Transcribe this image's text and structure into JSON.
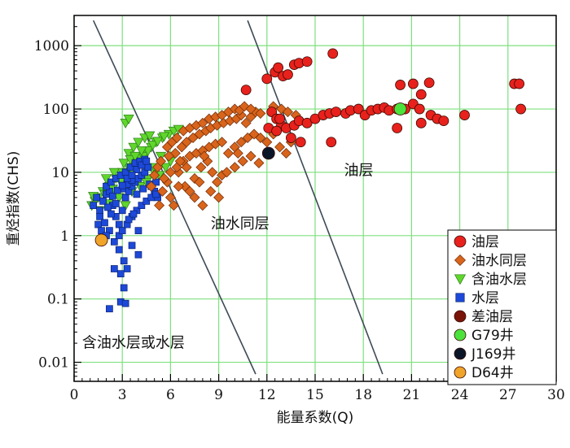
{
  "chart_data": {
    "type": "scatter",
    "xlabel": "能量系数(Q)",
    "ylabel": "重烃指数(CHS)",
    "xlim": [
      0,
      30
    ],
    "ylim": [
      0.005,
      3000
    ],
    "yscale": "log",
    "x_ticks": [
      "0",
      "3",
      "6",
      "9",
      "12",
      "15",
      "18",
      "21",
      "24",
      "27",
      "30"
    ],
    "x_tick_values": [
      0,
      3,
      6,
      9,
      12,
      15,
      18,
      21,
      24,
      27,
      30
    ],
    "y_ticks": [
      "0.01",
      "0.1",
      "1",
      "10",
      "100",
      "1000"
    ],
    "y_tick_values": [
      0.01,
      0.1,
      1,
      10,
      100,
      1000
    ],
    "grid": true,
    "grid_color": "#7ee07e",
    "legend_position": "bottom-right",
    "region_labels": [
      {
        "text": "油层",
        "x": 16.8,
        "y": 9
      },
      {
        "text": "油水同层",
        "x": 8.5,
        "y": 1.3
      },
      {
        "text": "含油水层或水层",
        "x": 0.5,
        "y": 0.017
      }
    ],
    "boundary_lines": [
      {
        "name": "left",
        "points": [
          [
            1.2,
            2500
          ],
          [
            11.3,
            0.0065
          ]
        ]
      },
      {
        "name": "right",
        "points": [
          [
            10.8,
            2500
          ],
          [
            19.2,
            0.0065
          ]
        ]
      }
    ],
    "series": [
      {
        "name": "油层",
        "marker": "circle",
        "color": "#e8211c",
        "points": [
          [
            10.7,
            200
          ],
          [
            12,
            300
          ],
          [
            12.5,
            380
          ],
          [
            12.7,
            450
          ],
          [
            13,
            330
          ],
          [
            13.3,
            350
          ],
          [
            13.7,
            500
          ],
          [
            14,
            530
          ],
          [
            14.5,
            560
          ],
          [
            16.1,
            750
          ],
          [
            12.3,
            90
          ],
          [
            12.6,
            70
          ],
          [
            12.9,
            55
          ],
          [
            13.2,
            50
          ],
          [
            13.7,
            55
          ],
          [
            14,
            65
          ],
          [
            14.5,
            60
          ],
          [
            15,
            70
          ],
          [
            15.5,
            80
          ],
          [
            15.9,
            85
          ],
          [
            16.3,
            90
          ],
          [
            16.9,
            85
          ],
          [
            17.2,
            95
          ],
          [
            17.7,
            100
          ],
          [
            18.1,
            80
          ],
          [
            18.5,
            95
          ],
          [
            18.9,
            100
          ],
          [
            19.3,
            105
          ],
          [
            19.6,
            95
          ],
          [
            20.1,
            100
          ],
          [
            20.6,
            100
          ],
          [
            21.1,
            120
          ],
          [
            21.5,
            100
          ],
          [
            22.2,
            80
          ],
          [
            22.6,
            70
          ],
          [
            23,
            65
          ],
          [
            20.3,
            240
          ],
          [
            21.1,
            250
          ],
          [
            21.6,
            170
          ],
          [
            22.1,
            260
          ],
          [
            24.3,
            80
          ],
          [
            27.4,
            250
          ],
          [
            27.7,
            250
          ],
          [
            27.8,
            100
          ],
          [
            12.1,
            50
          ],
          [
            12.6,
            45
          ],
          [
            13.5,
            35
          ],
          [
            14.1,
            30
          ],
          [
            16,
            30
          ],
          [
            20.1,
            50
          ],
          [
            21.6,
            60
          ],
          [
            12.8,
            70
          ]
        ]
      },
      {
        "name": "油水同层",
        "marker": "diamond",
        "color": "#d9641c",
        "points": [
          [
            5.3,
            3
          ],
          [
            5.5,
            5
          ],
          [
            5.8,
            7
          ],
          [
            6,
            4
          ],
          [
            6.2,
            3
          ],
          [
            6.5,
            10
          ],
          [
            6.9,
            6
          ],
          [
            7.2,
            5
          ],
          [
            7.5,
            8
          ],
          [
            7.9,
            12
          ],
          [
            8.3,
            15
          ],
          [
            8.6,
            10
          ],
          [
            8.9,
            7
          ],
          [
            9.2,
            9
          ],
          [
            6.3,
            20
          ],
          [
            6.7,
            25
          ],
          [
            7,
            30
          ],
          [
            7.4,
            35
          ],
          [
            7.8,
            40
          ],
          [
            8.2,
            45
          ],
          [
            8.5,
            50
          ],
          [
            8.9,
            55
          ],
          [
            9.3,
            60
          ],
          [
            9.7,
            65
          ],
          [
            10.1,
            70
          ],
          [
            10.4,
            80
          ],
          [
            10.7,
            60
          ],
          [
            11,
            75
          ],
          [
            11.3,
            90
          ],
          [
            11.6,
            85
          ],
          [
            5.8,
            25
          ],
          [
            6.1,
            30
          ],
          [
            6.4,
            35
          ],
          [
            6.8,
            45
          ],
          [
            7.2,
            50
          ],
          [
            7.6,
            55
          ],
          [
            8,
            60
          ],
          [
            8.4,
            70
          ],
          [
            8.8,
            75
          ],
          [
            9.2,
            80
          ],
          [
            9.6,
            90
          ],
          [
            10,
            100
          ],
          [
            10.3,
            95
          ],
          [
            10.6,
            110
          ],
          [
            11,
            100
          ],
          [
            5.6,
            8
          ],
          [
            6,
            10
          ],
          [
            6.4,
            12
          ],
          [
            6.8,
            15
          ],
          [
            7.2,
            18
          ],
          [
            7.6,
            20
          ],
          [
            8,
            22
          ],
          [
            8.4,
            25
          ],
          [
            8.8,
            28
          ],
          [
            9.2,
            30
          ],
          [
            9.6,
            20
          ],
          [
            10,
            25
          ],
          [
            10.4,
            30
          ],
          [
            10.8,
            35
          ],
          [
            11.2,
            40
          ],
          [
            11.6,
            35
          ],
          [
            12,
            30
          ],
          [
            12.4,
            40
          ],
          [
            12.8,
            25
          ],
          [
            13.2,
            20
          ],
          [
            13.5,
            30
          ],
          [
            4.8,
            6
          ],
          [
            5,
            9
          ],
          [
            5.2,
            12
          ],
          [
            5.4,
            15
          ],
          [
            7,
            12
          ],
          [
            7.5,
            4
          ],
          [
            8,
            3
          ],
          [
            8.5,
            5
          ],
          [
            9,
            4
          ],
          [
            10,
            12
          ],
          [
            10.5,
            15
          ],
          [
            11,
            18
          ],
          [
            11.5,
            14
          ],
          [
            6.5,
            6
          ],
          [
            7.8,
            7
          ],
          [
            9.5,
            10
          ],
          [
            5.9,
            18
          ],
          [
            6.6,
            15
          ],
          [
            8.1,
            18
          ],
          [
            10.2,
            20
          ],
          [
            12.4,
            110
          ],
          [
            12.9,
            100
          ],
          [
            13.3,
            90
          ],
          [
            13.8,
            80
          ]
        ]
      },
      {
        "name": "含油水层",
        "marker": "triangle-down",
        "color": "#5fd62c",
        "points": [
          [
            1.1,
            3
          ],
          [
            1.5,
            4
          ],
          [
            1.8,
            5
          ],
          [
            2.2,
            6
          ],
          [
            2.6,
            8
          ],
          [
            3,
            10
          ],
          [
            3.4,
            12
          ],
          [
            3.7,
            15
          ],
          [
            4.1,
            17
          ],
          [
            4.5,
            20
          ],
          [
            4.8,
            25
          ],
          [
            5.1,
            30
          ],
          [
            5.5,
            35
          ],
          [
            5.9,
            40
          ],
          [
            6.2,
            45
          ],
          [
            6.5,
            48
          ],
          [
            3.2,
            60
          ],
          [
            3.4,
            70
          ],
          [
            1.3,
            3.5
          ],
          [
            1.9,
            4.5
          ],
          [
            2.4,
            5.5
          ],
          [
            2.9,
            7
          ],
          [
            3.3,
            9
          ],
          [
            3.6,
            11
          ],
          [
            4,
            14
          ],
          [
            4.3,
            18
          ],
          [
            4.6,
            22
          ],
          [
            4.9,
            27
          ],
          [
            5.2,
            31
          ],
          [
            5.6,
            37
          ],
          [
            3.4,
            20
          ],
          [
            3.7,
            25
          ],
          [
            4,
            30
          ],
          [
            4.4,
            35
          ],
          [
            4.7,
            38
          ],
          [
            3.1,
            14
          ],
          [
            3.5,
            16
          ],
          [
            3.8,
            18
          ],
          [
            4.2,
            22
          ],
          [
            2,
            8
          ],
          [
            2.5,
            10
          ],
          [
            5.3,
            9
          ],
          [
            5.7,
            12
          ],
          [
            6,
            15
          ],
          [
            4.6,
            8
          ],
          [
            4.9,
            11
          ],
          [
            2.8,
            4
          ],
          [
            1.6,
            2.5
          ],
          [
            3.2,
            3
          ],
          [
            3.6,
            5
          ],
          [
            4.1,
            6
          ],
          [
            4.5,
            7
          ],
          [
            5,
            12
          ],
          [
            5.4,
            18
          ],
          [
            1.2,
            4.2
          ],
          [
            2.1,
            3.2
          ]
        ]
      },
      {
        "name": "水层",
        "marker": "square",
        "color": "#1d49d9",
        "points": [
          [
            1.2,
            3
          ],
          [
            1.4,
            4
          ],
          [
            1.6,
            2.5
          ],
          [
            1.8,
            3.5
          ],
          [
            2,
            4.5
          ],
          [
            2.2,
            5
          ],
          [
            2.4,
            3
          ],
          [
            2.6,
            2
          ],
          [
            2.8,
            1.5
          ],
          [
            3,
            2.5
          ],
          [
            3.2,
            4
          ],
          [
            3.4,
            5
          ],
          [
            3.6,
            6
          ],
          [
            3.8,
            7
          ],
          [
            4,
            8
          ],
          [
            4.2,
            9
          ],
          [
            4.4,
            10
          ],
          [
            4.6,
            12
          ],
          [
            4.8,
            6
          ],
          [
            5,
            5
          ],
          [
            5.2,
            4
          ],
          [
            2,
            6
          ],
          [
            2.3,
            7
          ],
          [
            2.6,
            8
          ],
          [
            2.9,
            9
          ],
          [
            3.2,
            10
          ],
          [
            3.5,
            12
          ],
          [
            3.8,
            14
          ],
          [
            4.1,
            15
          ],
          [
            4.4,
            16
          ],
          [
            1.6,
            2
          ],
          [
            1.9,
            1.6
          ],
          [
            2.2,
            1.2
          ],
          [
            2.5,
            0.8
          ],
          [
            2.8,
            0.6
          ],
          [
            3.1,
            0.4
          ],
          [
            3.3,
            0.3
          ],
          [
            3.6,
            0.7
          ],
          [
            4,
            0.5
          ],
          [
            2.9,
            0.25
          ],
          [
            3.1,
            0.15
          ],
          [
            2.9,
            0.09
          ],
          [
            3.2,
            0.085
          ],
          [
            2.2,
            0.07
          ],
          [
            2.5,
            0.3
          ],
          [
            2.8,
            1
          ],
          [
            3,
            1.2
          ],
          [
            3.3,
            1.5
          ],
          [
            3.6,
            2
          ],
          [
            3.9,
            2.5
          ],
          [
            4.2,
            3
          ],
          [
            4.5,
            3.5
          ],
          [
            4.8,
            4
          ],
          [
            5.1,
            4.5
          ],
          [
            3.4,
            1.8
          ],
          [
            3.7,
            2.2
          ],
          [
            4,
            1.2
          ],
          [
            1.5,
            1.5
          ],
          [
            1.7,
            1.2
          ],
          [
            2,
            1
          ],
          [
            2.3,
            2.2
          ],
          [
            2.6,
            3.2
          ],
          [
            3,
            5.5
          ],
          [
            3.3,
            6.5
          ],
          [
            3.6,
            7.5
          ],
          [
            3.9,
            11
          ],
          [
            4.2,
            13
          ],
          [
            4.5,
            15
          ],
          [
            2.1,
            2.8
          ],
          [
            2.4,
            4.2
          ],
          [
            2.7,
            5.2
          ],
          [
            3,
            6.2
          ],
          [
            3.3,
            8
          ],
          [
            3.6,
            9
          ],
          [
            3.9,
            4.5
          ],
          [
            4.3,
            5.5
          ],
          [
            4.7,
            6.5
          ],
          [
            5.1,
            7
          ]
        ]
      },
      {
        "name": "差油层",
        "marker": "circle",
        "color": "#7a1408",
        "points": []
      },
      {
        "name": "G79井",
        "marker": "circle",
        "color": "#4ce23c",
        "points": [
          [
            20.3,
            100
          ]
        ]
      },
      {
        "name": "J169井",
        "marker": "circle",
        "color": "#0a1628",
        "points": [
          [
            12.1,
            20
          ]
        ]
      },
      {
        "name": "D64井",
        "marker": "circle",
        "color": "#f0a42a",
        "points": [
          [
            1.7,
            0.85
          ]
        ]
      }
    ]
  }
}
